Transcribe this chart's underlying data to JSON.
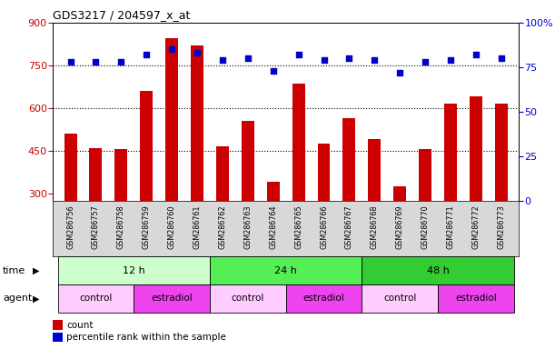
{
  "title": "GDS3217 / 204597_x_at",
  "samples": [
    "GSM286756",
    "GSM286757",
    "GSM286758",
    "GSM286759",
    "GSM286760",
    "GSM286761",
    "GSM286762",
    "GSM286763",
    "GSM286764",
    "GSM286765",
    "GSM286766",
    "GSM286767",
    "GSM286768",
    "GSM286769",
    "GSM286770",
    "GSM286771",
    "GSM286772",
    "GSM286773"
  ],
  "counts": [
    510,
    460,
    455,
    660,
    845,
    820,
    465,
    555,
    340,
    685,
    475,
    565,
    490,
    325,
    455,
    615,
    640,
    615
  ],
  "percentile_ranks": [
    78,
    78,
    78,
    82,
    85,
    83,
    79,
    80,
    73,
    82,
    79,
    80,
    79,
    72,
    78,
    79,
    82,
    80
  ],
  "ylim_left": [
    275,
    900
  ],
  "ylim_right": [
    0,
    100
  ],
  "yticks_left": [
    300,
    450,
    600,
    750,
    900
  ],
  "yticks_right": [
    0,
    25,
    50,
    75,
    100
  ],
  "bar_color": "#cc0000",
  "scatter_color": "#0000cc",
  "dotted_line_y": [
    450,
    600,
    750
  ],
  "time_groups": [
    {
      "label": "12 h",
      "start": 0,
      "end": 5,
      "color": "#ccffcc"
    },
    {
      "label": "24 h",
      "start": 6,
      "end": 11,
      "color": "#55ee55"
    },
    {
      "label": "48 h",
      "start": 12,
      "end": 17,
      "color": "#33cc33"
    }
  ],
  "agent_groups": [
    {
      "label": "control",
      "start": 0,
      "end": 2,
      "color": "#ffccff"
    },
    {
      "label": "estradiol",
      "start": 3,
      "end": 5,
      "color": "#ee44ee"
    },
    {
      "label": "control",
      "start": 6,
      "end": 8,
      "color": "#ffccff"
    },
    {
      "label": "estradiol",
      "start": 9,
      "end": 11,
      "color": "#ee44ee"
    },
    {
      "label": "control",
      "start": 12,
      "end": 14,
      "color": "#ffccff"
    },
    {
      "label": "estradiol",
      "start": 15,
      "end": 17,
      "color": "#ee44ee"
    }
  ],
  "legend_count_label": "count",
  "legend_pct_label": "percentile rank within the sample",
  "label_time": "time",
  "label_agent": "agent",
  "bar_width": 0.5,
  "bg_color": "#ffffff",
  "tick_color_left": "#cc0000",
  "tick_color_right": "#0000cc",
  "sample_label_bg": "#d8d8d8",
  "scatter_marker_size": 18
}
